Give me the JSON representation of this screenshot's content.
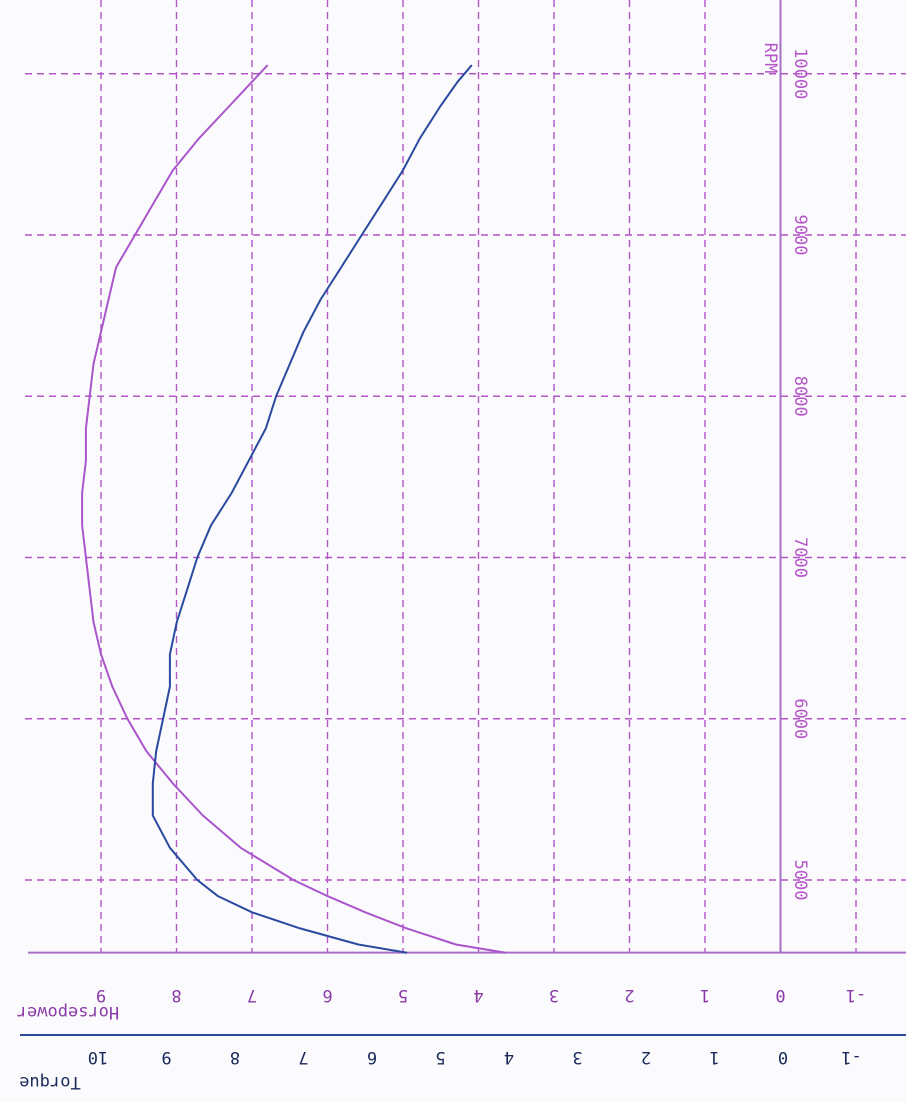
{
  "chart_data": {
    "type": "line",
    "orientation": "rotated-180",
    "x_label": "RPM",
    "x_range": [
      4550,
      10220
    ],
    "x_ticks": [
      5000,
      6000,
      7000,
      8000,
      9000,
      10000
    ],
    "grid": true,
    "axes": [
      {
        "id": "horsepower",
        "label": "Horsepower",
        "ticks": [
          -1,
          0,
          1,
          2,
          3,
          4,
          5,
          6,
          7,
          8,
          9
        ],
        "range": [
          -1.95,
          10.7
        ]
      },
      {
        "id": "torque",
        "label": "Torque",
        "ticks": [
          -1,
          0,
          1,
          2,
          3,
          4,
          5,
          6,
          7,
          8,
          9,
          10
        ],
        "range": [
          -1.95,
          11.05
        ]
      }
    ],
    "series": [
      {
        "name": "Horsepower",
        "axis": "horsepower",
        "color": "#aa55cc",
        "points": [
          [
            4550,
            3.65
          ],
          [
            4600,
            4.3
          ],
          [
            4700,
            4.95
          ],
          [
            4800,
            5.5
          ],
          [
            4900,
            6.0
          ],
          [
            5000,
            6.45
          ],
          [
            5200,
            7.15
          ],
          [
            5400,
            7.65
          ],
          [
            5600,
            8.05
          ],
          [
            5800,
            8.4
          ],
          [
            6000,
            8.65
          ],
          [
            6200,
            8.85
          ],
          [
            6400,
            9.0
          ],
          [
            6600,
            9.1
          ],
          [
            6800,
            9.15
          ],
          [
            7000,
            9.2
          ],
          [
            7200,
            9.25
          ],
          [
            7400,
            9.25
          ],
          [
            7600,
            9.2
          ],
          [
            7800,
            9.2
          ],
          [
            8000,
            9.15
          ],
          [
            8200,
            9.1
          ],
          [
            8400,
            9.0
          ],
          [
            8600,
            8.9
          ],
          [
            8800,
            8.8
          ],
          [
            9000,
            8.55
          ],
          [
            9200,
            8.3
          ],
          [
            9400,
            8.05
          ],
          [
            9600,
            7.7
          ],
          [
            9800,
            7.3
          ],
          [
            9950,
            7.0
          ],
          [
            10050,
            6.8
          ]
        ]
      },
      {
        "name": "Torque",
        "axis": "torque",
        "color": "#2a4aa0",
        "points": [
          [
            4550,
            5.5
          ],
          [
            4600,
            6.2
          ],
          [
            4700,
            7.05
          ],
          [
            4800,
            7.75
          ],
          [
            4900,
            8.25
          ],
          [
            5000,
            8.55
          ],
          [
            5200,
            8.95
          ],
          [
            5400,
            9.2
          ],
          [
            5600,
            9.2
          ],
          [
            5800,
            9.15
          ],
          [
            6000,
            9.05
          ],
          [
            6200,
            8.95
          ],
          [
            6400,
            8.95
          ],
          [
            6600,
            8.85
          ],
          [
            6800,
            8.7
          ],
          [
            7000,
            8.55
          ],
          [
            7200,
            8.35
          ],
          [
            7400,
            8.05
          ],
          [
            7600,
            7.8
          ],
          [
            7800,
            7.55
          ],
          [
            8000,
            7.4
          ],
          [
            8200,
            7.2
          ],
          [
            8400,
            7.0
          ],
          [
            8600,
            6.75
          ],
          [
            8800,
            6.45
          ],
          [
            9000,
            6.15
          ],
          [
            9200,
            5.85
          ],
          [
            9400,
            5.55
          ],
          [
            9600,
            5.3
          ],
          [
            9800,
            5.0
          ],
          [
            9950,
            4.75
          ],
          [
            10050,
            4.55
          ]
        ]
      }
    ]
  },
  "colors": {
    "grid": "#b455c8",
    "axis": "#a86fc8",
    "hp_label": "#8a3aa8",
    "torque_axis": "#2c4890",
    "torque_label": "#1a2a5a"
  }
}
